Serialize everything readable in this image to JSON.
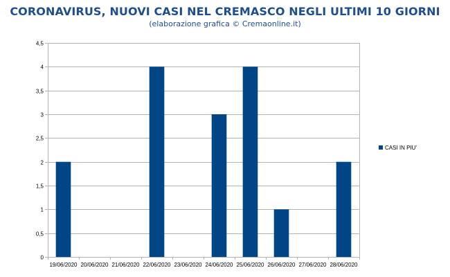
{
  "header": {
    "title": "CORONAVIRUS, NUOVI CASI NEL CREMASCO NEGLI ULTIMI 10 GIORNI",
    "subtitle": "(elaborazione grafica © Cremaonline.it)"
  },
  "colors": {
    "title": "#1f4e8c",
    "bar": "#004586",
    "grid": "#b3b3b3"
  },
  "chart_data": {
    "type": "bar",
    "categories": [
      "19/06/2020",
      "20/06/2020",
      "21/06/2020",
      "22/06/2020",
      "23/06/2020",
      "24/06/2020",
      "25/06/2020",
      "26/06/2020",
      "27/06/2020",
      "28/06/2020"
    ],
    "series": [
      {
        "name": "CASI IN PIU'",
        "values": [
          2,
          0,
          0,
          4,
          0,
          3,
          4,
          1,
          0,
          2
        ]
      }
    ],
    "ylim": [
      0,
      4.5
    ],
    "yticks": [
      0,
      0.5,
      1,
      1.5,
      2,
      2.5,
      3,
      3.5,
      4,
      4.5
    ],
    "ytick_labels": [
      "0",
      "0,5",
      "1",
      "1,5",
      "2",
      "2,5",
      "3",
      "3,5",
      "4",
      "4,5"
    ],
    "grid": true,
    "legend_position": "right"
  }
}
